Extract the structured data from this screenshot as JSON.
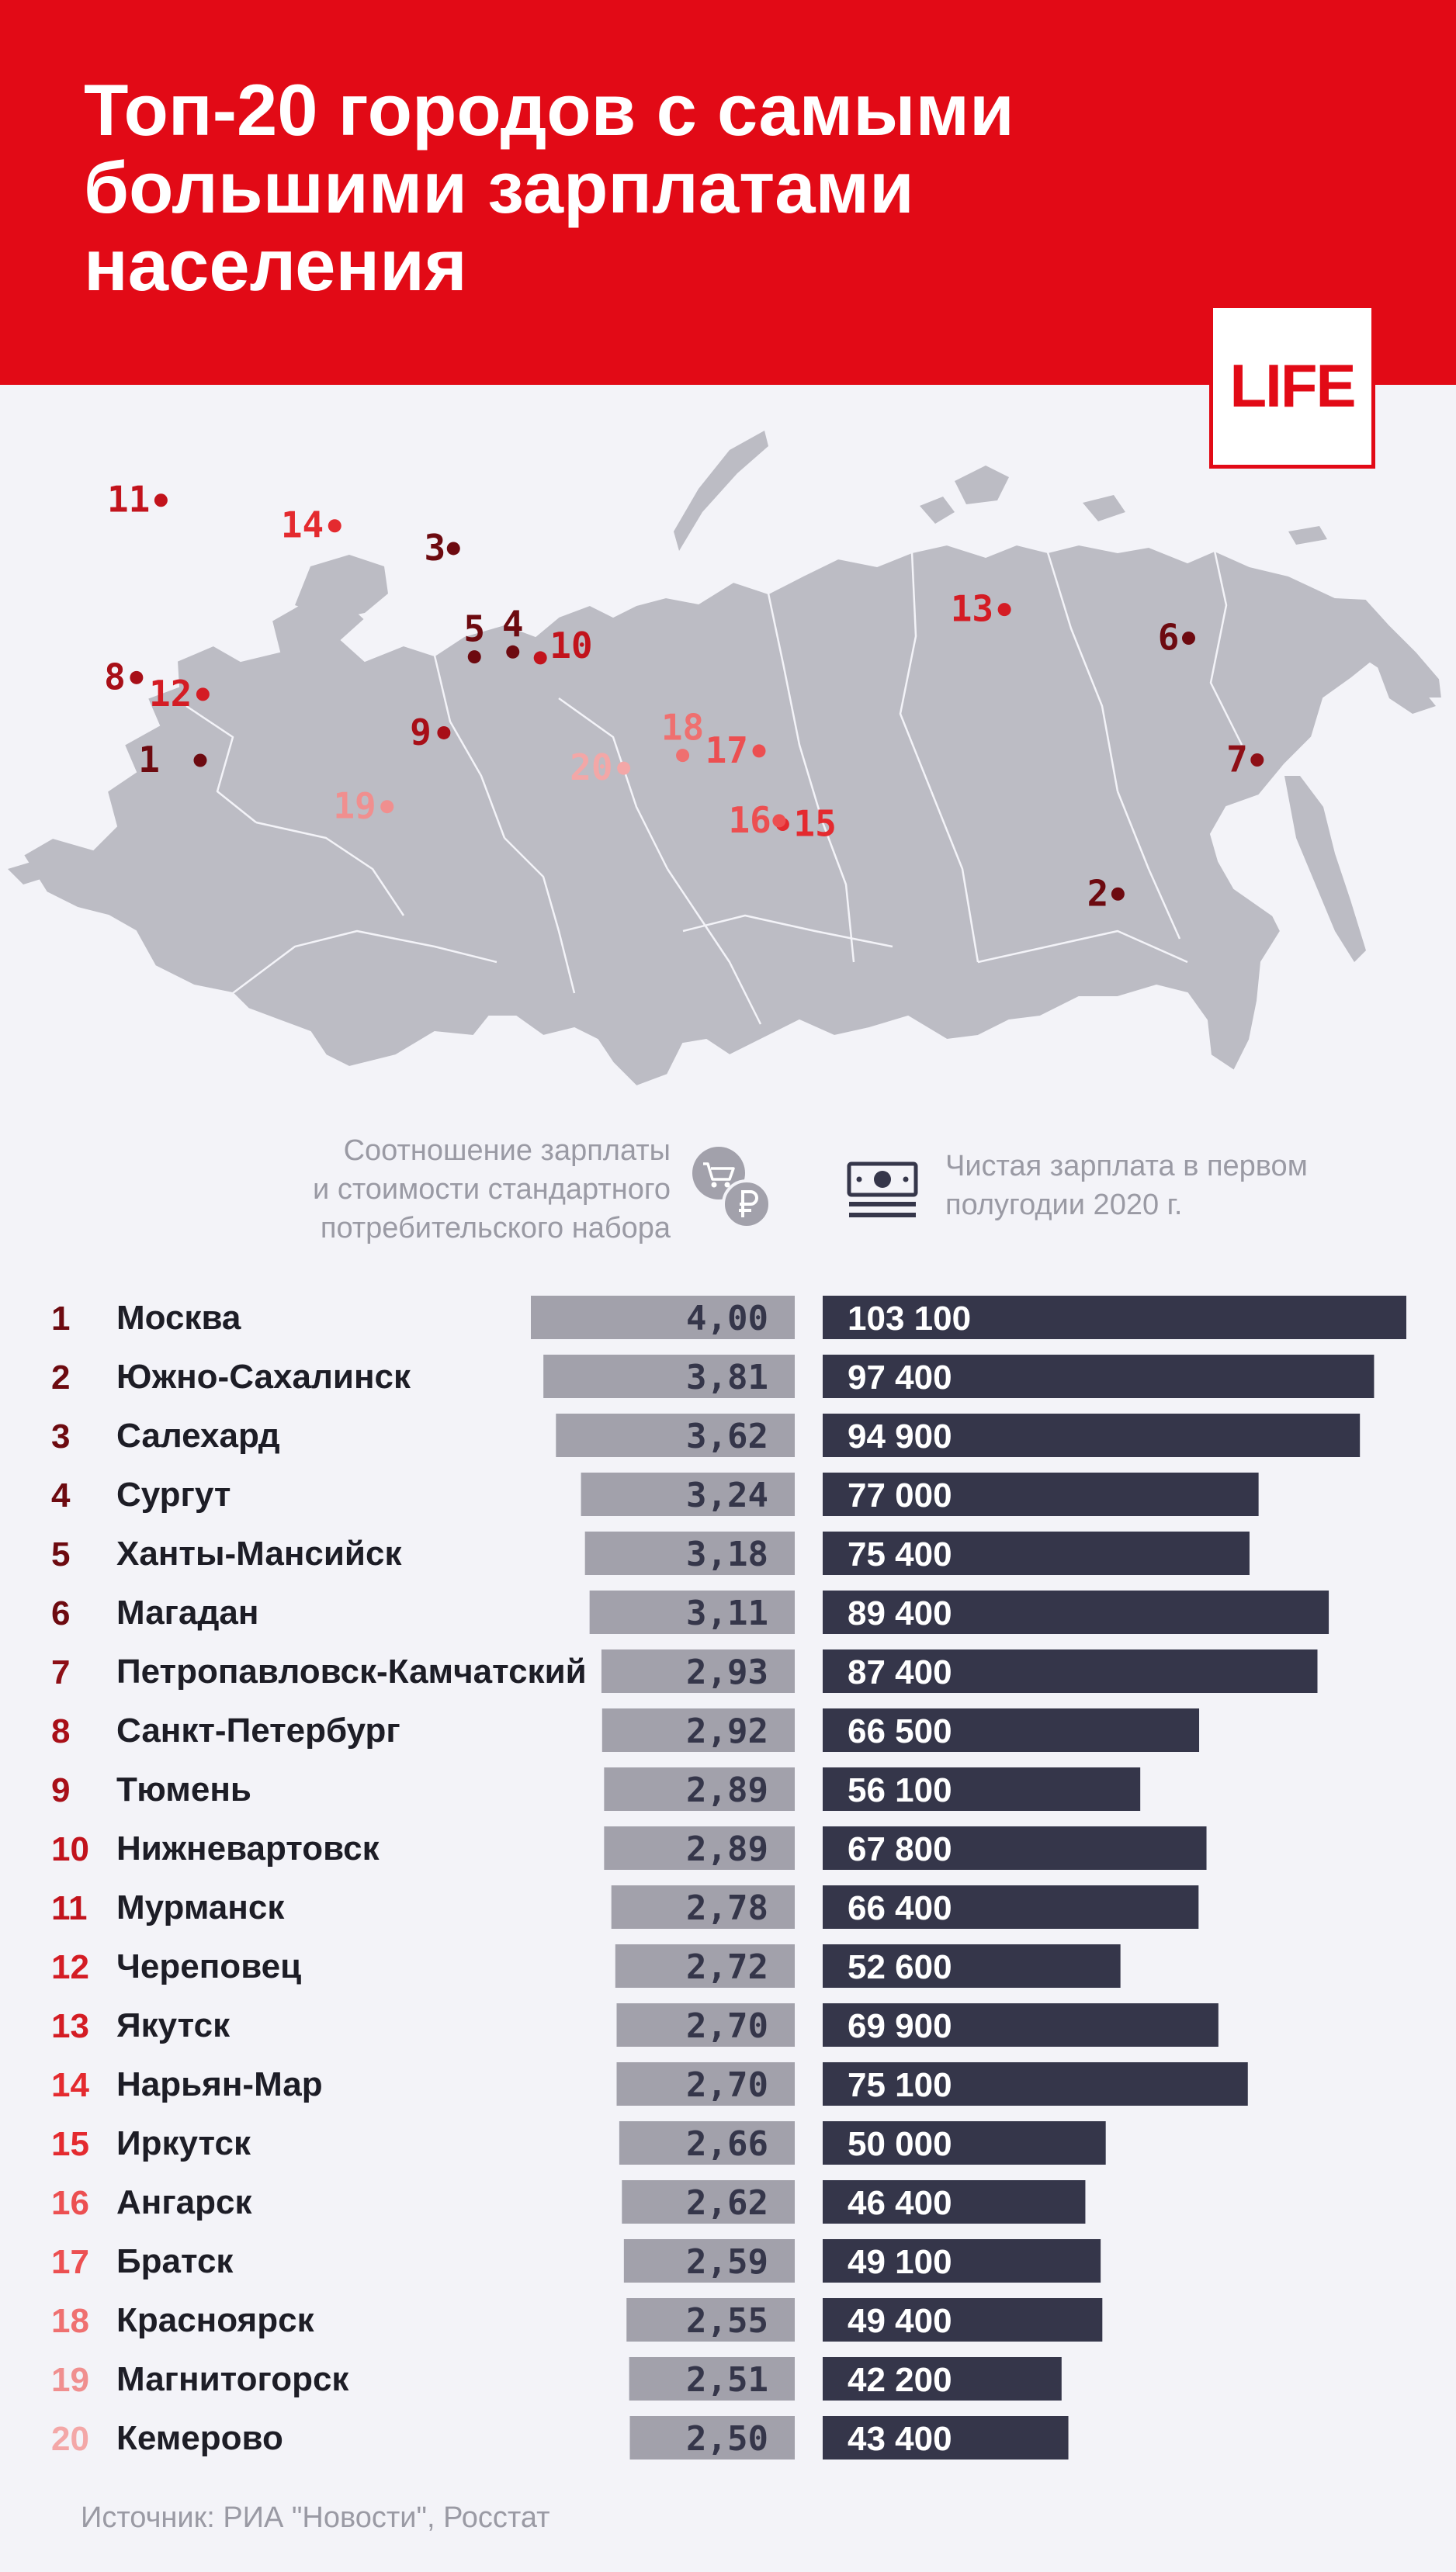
{
  "header": {
    "title": "Топ-20 городов с самыми\nбольшими зарплатами\nнаселения",
    "logo": "LIFE",
    "brand_color": "#e20a16"
  },
  "legend": {
    "ratio_label": "Соотношение зарплаты\nи стоимости стандартного\nпотребительского набора",
    "ratio_icon": "basket-ruble-icon",
    "salary_label": "Чистая зарплата в первом\nполугодии 2020 г.",
    "salary_icon": "banknote-stack-icon"
  },
  "chart_data": {
    "type": "bar",
    "categories": [
      "Москва",
      "Южно-Сахалинск",
      "Салехард",
      "Сургут",
      "Ханты-Мансийск",
      "Магадан",
      "Петропавловск-Камчатский",
      "Санкт-Петербург",
      "Тюмень",
      "Нижневартовск",
      "Мурманск",
      "Череповец",
      "Якутск",
      "Нарьян-Мар",
      "Иркутск",
      "Ангарск",
      "Братск",
      "Красноярск",
      "Магнитогорск",
      "Кемерово"
    ],
    "ranks": [
      "1",
      "2",
      "3",
      "4",
      "5",
      "6",
      "7",
      "8",
      "9",
      "10",
      "11",
      "12",
      "13",
      "14",
      "15",
      "16",
      "17",
      "18",
      "19",
      "20"
    ],
    "series": [
      {
        "values": [
          4.0,
          3.81,
          3.62,
          3.24,
          3.18,
          3.11,
          2.93,
          2.92,
          2.89,
          2.89,
          2.78,
          2.72,
          2.7,
          2.7,
          2.66,
          2.62,
          2.59,
          2.55,
          2.51,
          2.5
        ],
        "labels": [
          "4,00",
          "3,81",
          "3,62",
          "3,24",
          "3,18",
          "3,11",
          "2,93",
          "2,92",
          "2,89",
          "2,89",
          "2,78",
          "2,72",
          "2,70",
          "2,70",
          "2,66",
          "2,62",
          "2,59",
          "2,55",
          "2,51",
          "2,50"
        ],
        "color": "#a2a1ab"
      },
      {
        "values": [
          103100,
          97400,
          94900,
          77000,
          75400,
          89400,
          87400,
          66500,
          56100,
          67800,
          66400,
          52600,
          69900,
          75100,
          50000,
          46400,
          49100,
          49400,
          42200,
          43400
        ],
        "labels": [
          "103 100",
          "97 400",
          "94 900",
          "77 000",
          "75 400",
          "89 400",
          "87 400",
          "66 500",
          "56 100",
          "67 800",
          "66 400",
          "52 600",
          "69 900",
          "75 100",
          "50 000",
          "46 400",
          "49 100",
          "49 400",
          "42 200",
          "43 400"
        ],
        "color": "#35364a"
      }
    ],
    "rank_colors": [
      "#6d0a10",
      "#6d0a10",
      "#6d0a10",
      "#6d0a10",
      "#6d0a10",
      "#6d0a10",
      "#8e0f16",
      "#a80f18",
      "#a80f18",
      "#c2131c",
      "#c2131c",
      "#d41c24",
      "#d41c24",
      "#e42a2f",
      "#e42a2f",
      "#ec4f51",
      "#ec4f51",
      "#ef7070",
      "#f08f8f",
      "#f3a7a7"
    ]
  },
  "map": {
    "fill_color": "#bcbcc4",
    "markers": [
      {
        "label": "1",
        "lon": 37.6,
        "lat": 55.75
      },
      {
        "label": "2",
        "lon": 142.7,
        "lat": 46.95
      },
      {
        "label": "3",
        "lon": 66.6,
        "lat": 66.5
      },
      {
        "label": "4",
        "lon": 73.4,
        "lat": 61.25
      },
      {
        "label": "5",
        "lon": 69.0,
        "lat": 61.0
      },
      {
        "label": "6",
        "lon": 150.8,
        "lat": 59.55
      },
      {
        "label": "7",
        "lon": 158.65,
        "lat": 53.0
      },
      {
        "label": "8",
        "lon": 30.3,
        "lat": 59.95
      },
      {
        "label": "9",
        "lon": 65.5,
        "lat": 57.15
      },
      {
        "label": "10",
        "lon": 76.55,
        "lat": 60.95
      },
      {
        "label": "11",
        "lon": 33.1,
        "lat": 68.95
      },
      {
        "label": "12",
        "lon": 37.9,
        "lat": 59.1
      },
      {
        "label": "13",
        "lon": 129.7,
        "lat": 62.0
      },
      {
        "label": "14",
        "lon": 53.0,
        "lat": 67.65
      },
      {
        "label": "15",
        "lon": 104.3,
        "lat": 52.3
      },
      {
        "label": "16",
        "lon": 103.9,
        "lat": 52.5
      },
      {
        "label": "17",
        "lon": 101.6,
        "lat": 56.15
      },
      {
        "label": "18",
        "lon": 92.85,
        "lat": 56.0
      },
      {
        "label": "19",
        "lon": 59.0,
        "lat": 53.4
      },
      {
        "label": "20",
        "lon": 86.1,
        "lat": 55.35
      }
    ]
  },
  "source": "Источник: РИА \"Новости\", Росстат"
}
